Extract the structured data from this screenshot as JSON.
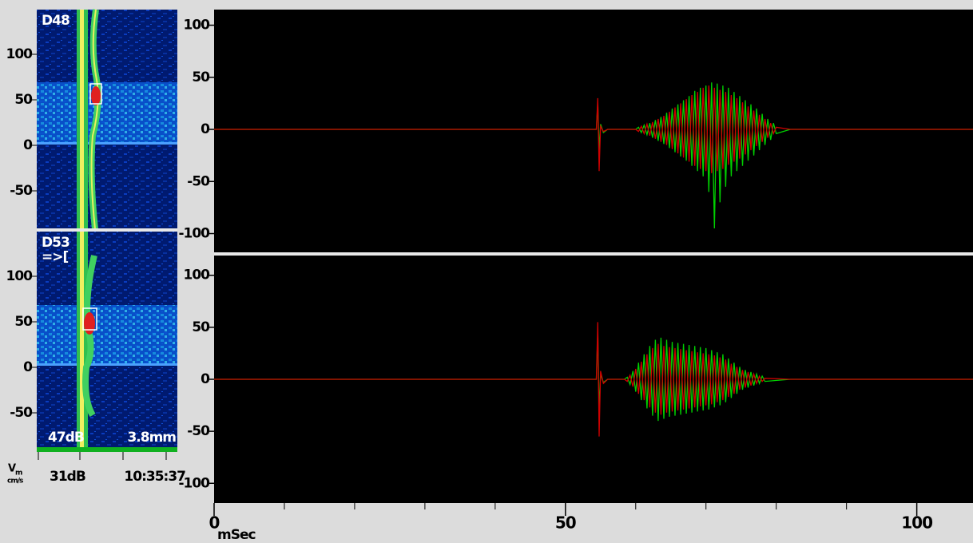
{
  "left_panel": {
    "panels": [
      {
        "label": "D48",
        "yticks": [
          100,
          50,
          0,
          -50
        ]
      },
      {
        "label": "D53",
        "marker": "=>[",
        "yticks": [
          100,
          50,
          0,
          -50
        ]
      }
    ],
    "gain": "47dB",
    "depth": "3.8mm",
    "velocity_symbol": "V",
    "velocity_subscript": "m",
    "velocity_unit": "cm/s",
    "power": "31dB",
    "time": "10:35:37"
  },
  "chart_data": [
    {
      "type": "line",
      "xlim": [
        0,
        108
      ],
      "ylim": [
        -118,
        115
      ],
      "yticks": [
        100,
        50,
        0,
        -50,
        -100
      ],
      "x": [
        0,
        54.4,
        54.6,
        54.8,
        55.0,
        55.4,
        56,
        60,
        60.4,
        60.8,
        61.2,
        61.6,
        62,
        62.4,
        62.8,
        63.2,
        63.6,
        64,
        64.4,
        64.8,
        65.2,
        65.6,
        66,
        66.4,
        66.8,
        67.2,
        67.6,
        68,
        68.4,
        68.8,
        69.2,
        69.6,
        70,
        70.4,
        70.8,
        71.2,
        71.6,
        72,
        72.4,
        72.8,
        73.2,
        73.6,
        74,
        74.4,
        74.8,
        75.2,
        75.6,
        76,
        76.4,
        76.8,
        77.2,
        77.6,
        78,
        78.4,
        78.8,
        79.2,
        79.6,
        80,
        82,
        108
      ],
      "series": [
        {
          "color": "#00d000",
          "values": [
            0,
            0,
            25,
            -20,
            5,
            -3,
            0,
            0,
            2,
            -3,
            4,
            -5,
            6,
            -8,
            9,
            -11,
            12,
            -14,
            16,
            -18,
            20,
            -22,
            24,
            -26,
            28,
            -30,
            32,
            -35,
            37,
            -40,
            40,
            -45,
            42,
            -60,
            45,
            -95,
            44,
            -70,
            42,
            -55,
            40,
            -45,
            36,
            -40,
            32,
            -35,
            28,
            -30,
            24,
            -25,
            20,
            -20,
            15,
            -15,
            10,
            -10,
            6,
            -4,
            0,
            0
          ]
        },
        {
          "color": "#d00000",
          "values": [
            0,
            0,
            30,
            -40,
            3,
            -2,
            0,
            0,
            -2,
            3,
            -4,
            5,
            -6,
            7,
            -9,
            10,
            -12,
            13,
            -15,
            17,
            -19,
            21,
            -23,
            25,
            -27,
            29,
            -31,
            33,
            -35,
            36,
            -38,
            40,
            -40,
            42,
            -42,
            40,
            -40,
            38,
            -38,
            36,
            -34,
            33,
            -31,
            30,
            -28,
            26,
            -24,
            22,
            -20,
            18,
            -16,
            14,
            -12,
            10,
            -8,
            6,
            -4,
            2,
            0,
            0
          ]
        }
      ]
    },
    {
      "type": "line",
      "xlim": [
        0,
        108
      ],
      "ylim": [
        -119,
        119
      ],
      "yticks": [
        100,
        50,
        0,
        -50,
        -100
      ],
      "xticks": [
        0,
        50,
        100
      ],
      "xminor_ticks": [
        10,
        20,
        30,
        40,
        60,
        70,
        80,
        90
      ],
      "xlabel": "mSec",
      "x": [
        0,
        54.4,
        54.6,
        54.8,
        55.0,
        55.4,
        56,
        58.4,
        58.8,
        59.2,
        59.6,
        60,
        60.4,
        60.8,
        61.2,
        61.6,
        62,
        62.4,
        62.8,
        63.2,
        63.6,
        64,
        64.4,
        64.8,
        65.2,
        65.6,
        66,
        66.4,
        66.8,
        67.2,
        67.6,
        68,
        68.4,
        68.8,
        69.2,
        69.6,
        70,
        70.4,
        70.8,
        71.2,
        71.6,
        72,
        72.4,
        72.8,
        73.2,
        73.6,
        74,
        74.4,
        74.8,
        75.2,
        75.6,
        76,
        76.4,
        76.8,
        77.2,
        77.6,
        78,
        78.4,
        82,
        108
      ],
      "series": [
        {
          "color": "#00d000",
          "values": [
            0,
            0,
            45,
            -30,
            5,
            -3,
            0,
            0,
            2,
            -5,
            8,
            -12,
            16,
            -20,
            24,
            -28,
            32,
            -35,
            38,
            -40,
            40,
            -38,
            38,
            -36,
            36,
            -35,
            35,
            -34,
            34,
            -33,
            33,
            -32,
            32,
            -31,
            31,
            -30,
            30,
            -29,
            28,
            -27,
            26,
            -25,
            24,
            -22,
            20,
            -18,
            16,
            -14,
            12,
            -10,
            9,
            -8,
            7,
            -6,
            5,
            -4,
            3,
            -2,
            0,
            0
          ]
        },
        {
          "color": "#d00000",
          "values": [
            0,
            0,
            55,
            -55,
            8,
            -4,
            0,
            0,
            -2,
            4,
            -7,
            10,
            -14,
            17,
            -20,
            24,
            -27,
            30,
            -32,
            34,
            -34,
            32,
            -32,
            31,
            -31,
            30,
            -30,
            29,
            -29,
            28,
            -28,
            27,
            -27,
            26,
            -26,
            25,
            -25,
            24,
            -24,
            23,
            -22,
            21,
            -20,
            19,
            -17,
            15,
            -14,
            12,
            -10,
            9,
            -8,
            7,
            -6,
            5,
            -4,
            3,
            -2,
            1,
            0,
            0
          ]
        }
      ]
    }
  ]
}
